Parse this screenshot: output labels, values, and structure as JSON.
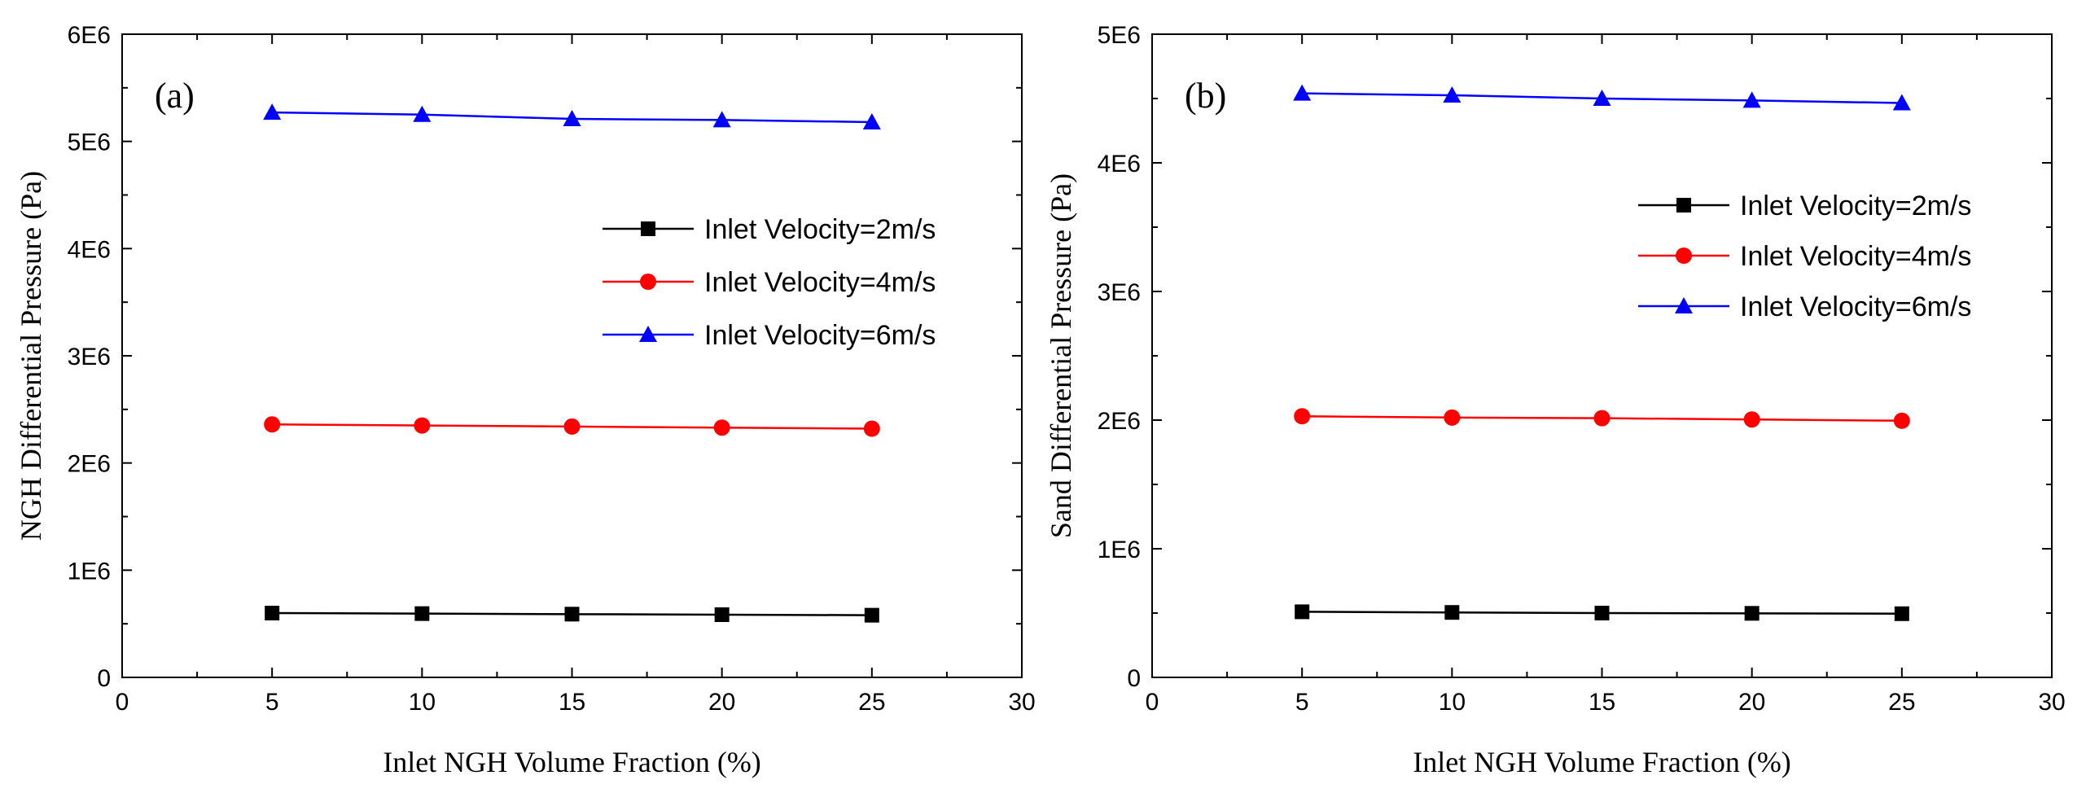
{
  "chart_data": [
    {
      "type": "line",
      "panel_label": "(a)",
      "title": "",
      "xlabel": "Inlet NGH Volume Fraction (%)",
      "ylabel": "NGH Differential Pressure (Pa)",
      "xlim": [
        0,
        30
      ],
      "ylim": [
        0,
        6000000
      ],
      "x_ticks": [
        0,
        5,
        10,
        15,
        20,
        25,
        30
      ],
      "x_tick_labels": [
        "0",
        "5",
        "10",
        "15",
        "20",
        "25",
        "30"
      ],
      "y_ticks": [
        0,
        1000000,
        2000000,
        3000000,
        4000000,
        5000000,
        6000000
      ],
      "y_tick_labels": [
        "0",
        "1E6",
        "2E6",
        "3E6",
        "4E6",
        "5E6",
        "6E6"
      ],
      "grid": false,
      "legend_position": "right",
      "x": [
        5,
        10,
        15,
        20,
        25
      ],
      "series": [
        {
          "name": "Inlet Velocity=2m/s",
          "color": "#000000",
          "marker": "square",
          "values": [
            600000,
            595000,
            590000,
            585000,
            580000
          ]
        },
        {
          "name": "Inlet Velocity=4m/s",
          "color": "#ff0000",
          "marker": "circle",
          "values": [
            2360000,
            2350000,
            2340000,
            2330000,
            2320000
          ]
        },
        {
          "name": "Inlet Velocity=6m/s",
          "color": "#0000ff",
          "marker": "triangle",
          "values": [
            5270000,
            5250000,
            5210000,
            5200000,
            5180000
          ]
        }
      ]
    },
    {
      "type": "line",
      "panel_label": "(b)",
      "title": "",
      "xlabel": "Inlet NGH Volume Fraction (%)",
      "ylabel": "Sand Differential Pressure (Pa)",
      "xlim": [
        0,
        30
      ],
      "ylim": [
        0,
        5000000
      ],
      "x_ticks": [
        0,
        5,
        10,
        15,
        20,
        25,
        30
      ],
      "x_tick_labels": [
        "0",
        "5",
        "10",
        "15",
        "20",
        "25",
        "30"
      ],
      "y_ticks": [
        0,
        1000000,
        2000000,
        3000000,
        4000000,
        5000000
      ],
      "y_tick_labels": [
        "0",
        "1E6",
        "2E6",
        "3E6",
        "4E6",
        "5E6"
      ],
      "grid": false,
      "legend_position": "top-right",
      "x": [
        5,
        10,
        15,
        20,
        25
      ],
      "series": [
        {
          "name": "Inlet Velocity=2m/s",
          "color": "#000000",
          "marker": "square",
          "values": [
            510000,
            505000,
            500000,
            498000,
            495000
          ]
        },
        {
          "name": "Inlet Velocity=4m/s",
          "color": "#ff0000",
          "marker": "circle",
          "values": [
            2030000,
            2020000,
            2015000,
            2005000,
            1995000
          ]
        },
        {
          "name": "Inlet Velocity=6m/s",
          "color": "#0000ff",
          "marker": "triangle",
          "values": [
            4540000,
            4525000,
            4500000,
            4485000,
            4465000
          ]
        }
      ]
    }
  ]
}
